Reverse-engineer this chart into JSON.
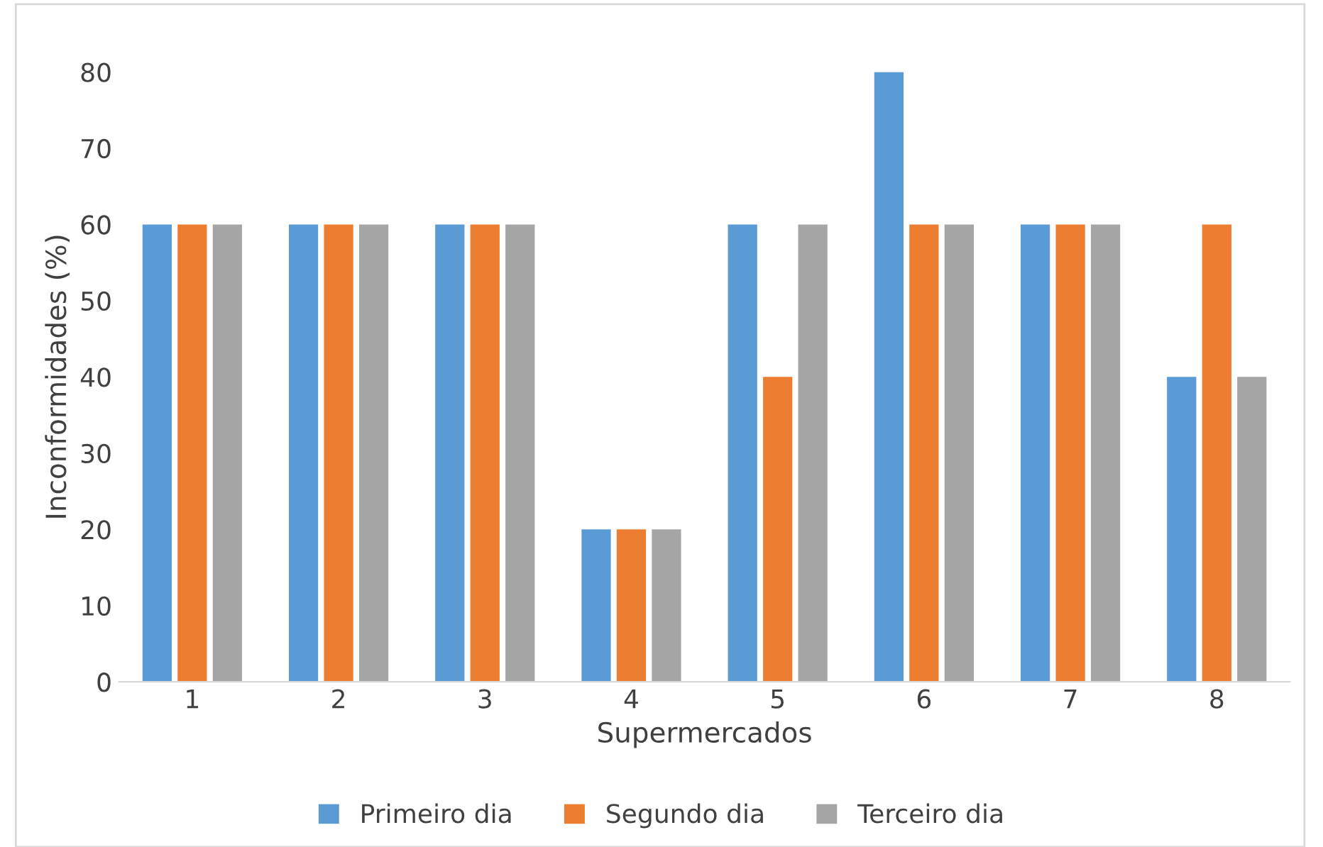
{
  "chart_data": {
    "type": "bar",
    "xlabel": "Supermercados",
    "ylabel": "Inconformidades (%)",
    "categories": [
      "1",
      "2",
      "3",
      "4",
      "5",
      "6",
      "7",
      "8"
    ],
    "series": [
      {
        "name": "Primeiro dia",
        "color": "#5b9bd5",
        "values": [
          60,
          60,
          60,
          20,
          60,
          80,
          60,
          40
        ]
      },
      {
        "name": "Segundo dia",
        "color": "#ed7d31",
        "values": [
          60,
          60,
          60,
          20,
          40,
          60,
          60,
          60
        ]
      },
      {
        "name": "Terceiro dia",
        "color": "#a5a5a5",
        "values": [
          60,
          60,
          60,
          20,
          60,
          60,
          60,
          40
        ]
      }
    ],
    "ylim": [
      0,
      80
    ],
    "yticks": [
      0,
      10,
      20,
      30,
      40,
      50,
      60,
      70,
      80
    ],
    "grid": false,
    "legend": "bottom"
  }
}
